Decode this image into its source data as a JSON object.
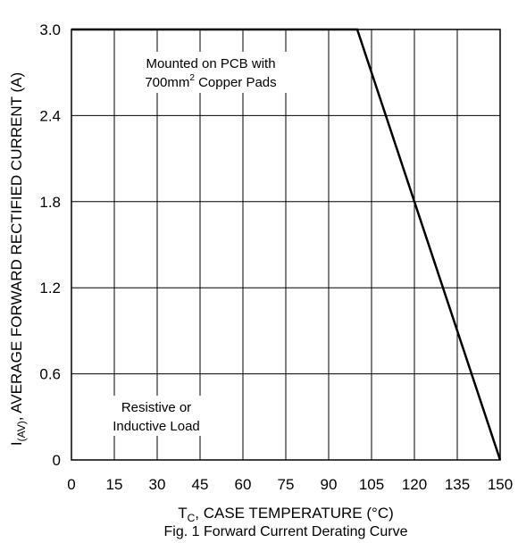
{
  "chart_data": {
    "type": "line",
    "title": "Fig. 1 Forward Current Derating Curve",
    "xlabel_main": "T",
    "xlabel_sub": "C",
    "xlabel_rest": ", CASE TEMPERATURE (°C)",
    "ylabel_main": "I",
    "ylabel_sub": "(AV)",
    "ylabel_rest": ", AVERAGE FORWARD RECTIFIED CURRENT (A)",
    "xlim": [
      0,
      150
    ],
    "ylim": [
      0,
      3.0
    ],
    "x_ticks": [
      0,
      15,
      30,
      45,
      60,
      75,
      90,
      105,
      120,
      135,
      150
    ],
    "x_tick_labels": [
      "0",
      "15",
      "30",
      "45",
      "60",
      "75",
      "90",
      "105",
      "120",
      "135",
      "150"
    ],
    "y_ticks": [
      0,
      0.6,
      1.2,
      1.8,
      2.4,
      3.0
    ],
    "y_tick_labels": [
      "0",
      "0.6",
      "1.2",
      "1.8",
      "2.4",
      "3.0"
    ],
    "grid": true,
    "series": [
      {
        "x": [
          0,
          100,
          150
        ],
        "y": [
          3.0,
          3.0,
          0
        ]
      }
    ],
    "annotations": {
      "pcb_line1": "Mounted on PCB with",
      "pcb_line2_a": "700mm",
      "pcb_line2_sup": "2",
      "pcb_line2_b": " Copper Pads",
      "load_line1": "Resistive or",
      "load_line2": "Inductive Load"
    }
  }
}
